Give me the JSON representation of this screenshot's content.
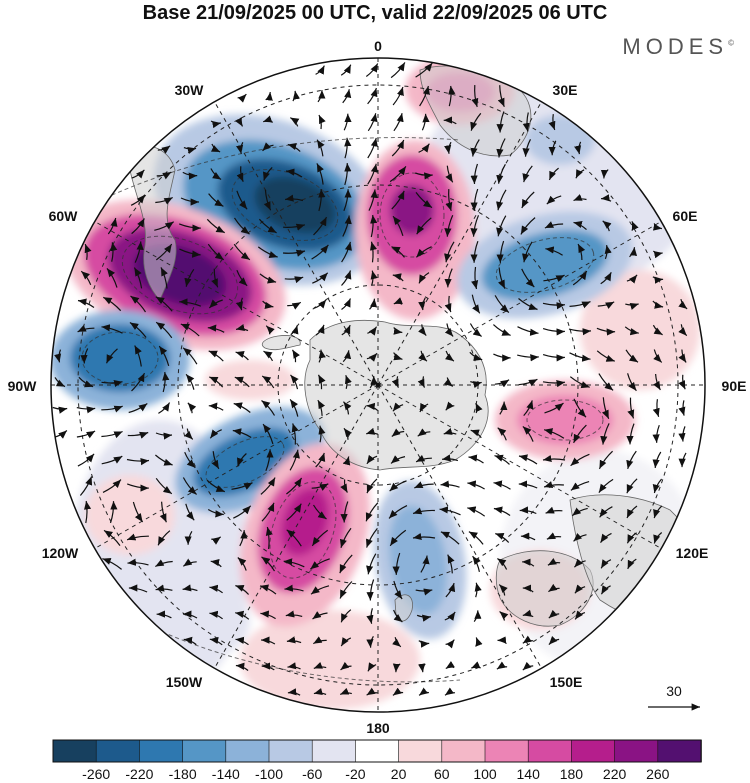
{
  "title": "Base 21/09/2025 00 UTC, valid 22/09/2025 06 UTC",
  "brand": "MODES",
  "brand_mark": "©",
  "meridians": {
    "top": "0",
    "bottom": "180",
    "left": "90W",
    "right": "90E",
    "upper_left": "30W",
    "upper_right": "30E",
    "mid_upper_left": "60W",
    "mid_upper_right": "60E",
    "mid_lower_left": "120W",
    "mid_lower_right": "120E",
    "lower_left": "150W",
    "lower_right": "150E"
  },
  "vector_scale_label": "30",
  "colorbar": {
    "colors": [
      "#17405f",
      "#1d5a8c",
      "#2e78b0",
      "#5596c6",
      "#8cb2d9",
      "#b8c9e4",
      "#e3e4f1",
      "#ffffff",
      "#f8d9dc",
      "#f4b8c8",
      "#ec84b5",
      "#d64ba2",
      "#b51e8c",
      "#8a1384",
      "#531070"
    ],
    "tick_labels": [
      "-260",
      "-220",
      "-180",
      "-140",
      "-100",
      "-60",
      "-20",
      "20",
      "60",
      "100",
      "140",
      "180",
      "220",
      "260"
    ]
  }
}
